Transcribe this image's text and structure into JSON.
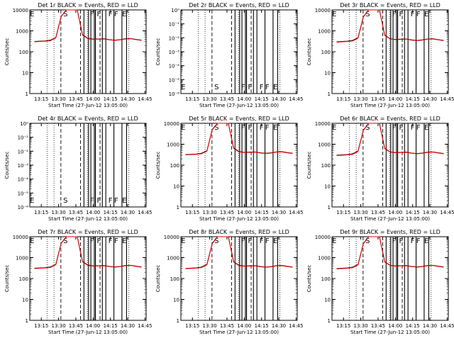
{
  "figure": {
    "colors": {
      "events": "#000000",
      "lld": "#e00000",
      "background": "#ffffff"
    },
    "time_ticks": [
      "13:15",
      "13:30",
      "13:45",
      "14:00",
      "14:15",
      "14:30",
      "14:45"
    ]
  },
  "chart_data": [
    {
      "type": "line",
      "panel": 1,
      "title": "Det 1r BLACK = Events, RED = LLD",
      "xlabel": "Start Time (27-Jun-12 13:05:00)",
      "ylabel": "Counts/sec",
      "ylog": true,
      "yticks": [
        "1",
        "10",
        "100",
        "1000",
        "10000"
      ],
      "markers": [
        "E",
        "S",
        "F",
        "F",
        "F",
        "F",
        "E"
      ],
      "series": [
        {
          "name": "Events",
          "values": [
            310,
            320,
            330,
            360,
            480,
            5000,
            12000,
            12000,
            11500,
            650,
            440,
            400,
            410,
            420,
            380,
            360,
            380,
            420,
            430,
            390,
            360
          ]
        },
        {
          "name": "LLD",
          "values": [
            300,
            310,
            320,
            340,
            460,
            4800,
            11000,
            11000,
            10500,
            620,
            420,
            390,
            400,
            410,
            370,
            350,
            370,
            410,
            420,
            380,
            350
          ]
        }
      ]
    },
    {
      "type": "line",
      "panel": 2,
      "title": "Det 2r BLACK = Events, RED = LLD",
      "xlabel": "Start Time (27-Jun-12 13:05:00)",
      "ylabel": "Counts/sec",
      "ylog": true,
      "yticks": [
        "10⁻⁶",
        "10⁻⁵",
        "10⁻⁴",
        "10⁻³",
        "10⁻²",
        "10⁻¹",
        "10⁰"
      ],
      "markers": [
        "E",
        "S",
        "F",
        "F",
        "F",
        "F",
        "E"
      ],
      "series": []
    },
    {
      "type": "line",
      "panel": 3,
      "title": "Det 3r BLACK = Events, RED = LLD",
      "xlabel": "Start Time (27-Jun-12 13:05:00)",
      "ylabel": "Counts/sec",
      "ylog": true,
      "yticks": [
        "1",
        "10",
        "100",
        "1000",
        "10000"
      ],
      "markers": [
        "E",
        "S",
        "F",
        "F",
        "F",
        "F",
        "E"
      ],
      "series": [
        {
          "name": "Events",
          "values": [
            300,
            310,
            320,
            350,
            470,
            4800,
            11500,
            11500,
            11000,
            620,
            420,
            390,
            400,
            410,
            370,
            350,
            370,
            410,
            420,
            380,
            350
          ]
        },
        {
          "name": "LLD",
          "values": [
            290,
            300,
            310,
            330,
            450,
            4600,
            10500,
            10500,
            10000,
            600,
            410,
            380,
            390,
            400,
            360,
            340,
            360,
            400,
            410,
            370,
            340
          ]
        }
      ]
    },
    {
      "type": "line",
      "panel": 4,
      "title": "Det 4r BLACK = Events, RED = LLD",
      "xlabel": "Start Time (27-Jun-12 13:05:00)",
      "ylabel": "Counts/sec",
      "ylog": true,
      "yticks": [
        "10⁻⁶",
        "10⁻⁵",
        "10⁻⁴",
        "10⁻³",
        "10⁻²",
        "10⁻¹",
        "10⁰"
      ],
      "markers": [
        "E",
        "S",
        "F",
        "F",
        "F",
        "F",
        "E"
      ],
      "series": []
    },
    {
      "type": "line",
      "panel": 5,
      "title": "Det 5r BLACK = Events, RED = LLD",
      "xlabel": "Start Time (27-Jun-12 13:05:00)",
      "ylabel": "Counts/sec",
      "ylog": true,
      "yticks": [
        "1",
        "10",
        "100",
        "1000",
        "10000"
      ],
      "markers": [
        "E",
        "S",
        "F",
        "F",
        "F",
        "F",
        "E"
      ],
      "series": [
        {
          "name": "Events",
          "values": [
            320,
            330,
            340,
            370,
            490,
            5100,
            12500,
            12500,
            12000,
            660,
            450,
            410,
            420,
            430,
            390,
            370,
            390,
            430,
            440,
            400,
            370
          ]
        },
        {
          "name": "LLD",
          "values": [
            310,
            320,
            330,
            350,
            470,
            4900,
            11500,
            11500,
            11000,
            630,
            430,
            400,
            410,
            420,
            380,
            360,
            380,
            420,
            430,
            390,
            360
          ]
        }
      ]
    },
    {
      "type": "line",
      "panel": 6,
      "title": "Det 6r BLACK = Events, RED = LLD",
      "xlabel": "Start Time (27-Jun-12 13:05:00)",
      "ylabel": "Counts/sec",
      "ylog": true,
      "yticks": [
        "1",
        "10",
        "100",
        "1000",
        "10000"
      ],
      "markers": [
        "E",
        "S",
        "F",
        "F",
        "F",
        "F",
        "E"
      ],
      "series": [
        {
          "name": "Events",
          "values": [
            300,
            310,
            320,
            350,
            470,
            4800,
            11500,
            11500,
            11000,
            630,
            430,
            400,
            410,
            420,
            380,
            360,
            380,
            420,
            430,
            390,
            360
          ]
        },
        {
          "name": "LLD",
          "values": [
            290,
            300,
            310,
            330,
            450,
            4600,
            10500,
            10500,
            10000,
            610,
            420,
            390,
            400,
            410,
            370,
            350,
            370,
            410,
            420,
            380,
            350
          ]
        }
      ]
    },
    {
      "type": "line",
      "panel": 7,
      "title": "Det 7r BLACK = Events, RED = LLD",
      "xlabel": "Start Time (27-Jun-12 13:05:00)",
      "ylabel": "Counts/sec",
      "ylog": true,
      "yticks": [
        "1",
        "10",
        "100",
        "1000",
        "10000"
      ],
      "markers": [
        "E",
        "S",
        "F",
        "F",
        "F",
        "F",
        "E"
      ],
      "series": [
        {
          "name": "Events",
          "values": [
            310,
            320,
            330,
            360,
            480,
            5000,
            12000,
            12000,
            11500,
            650,
            440,
            400,
            410,
            420,
            380,
            360,
            380,
            420,
            430,
            390,
            360
          ]
        },
        {
          "name": "LLD",
          "values": [
            300,
            310,
            320,
            340,
            460,
            4800,
            11000,
            11000,
            10500,
            620,
            420,
            390,
            400,
            410,
            370,
            350,
            370,
            410,
            420,
            380,
            350
          ]
        }
      ]
    },
    {
      "type": "line",
      "panel": 8,
      "title": "Det 8r BLACK = Events, RED = LLD",
      "xlabel": "Start Time (27-Jun-12 13:05:00)",
      "ylabel": "Counts/sec",
      "ylog": true,
      "yticks": [
        "1",
        "10",
        "100",
        "1000",
        "10000"
      ],
      "markers": [
        "E",
        "S",
        "F",
        "F",
        "F",
        "F",
        "E"
      ],
      "series": [
        {
          "name": "Events",
          "values": [
            305,
            315,
            325,
            355,
            475,
            4900,
            11800,
            11800,
            11300,
            640,
            435,
            395,
            405,
            415,
            375,
            355,
            375,
            415,
            425,
            385,
            355
          ]
        },
        {
          "name": "LLD",
          "values": [
            295,
            305,
            315,
            335,
            455,
            4700,
            10800,
            10800,
            10300,
            615,
            415,
            385,
            395,
            405,
            365,
            345,
            365,
            405,
            415,
            375,
            345
          ]
        }
      ]
    },
    {
      "type": "line",
      "panel": 9,
      "title": "Det 9r BLACK = Events, RED = LLD",
      "xlabel": "Start Time (27-Jun-12 13:05:00)",
      "ylabel": "Counts/sec",
      "ylog": true,
      "yticks": [
        "1",
        "10",
        "100",
        "1000",
        "10000"
      ],
      "markers": [
        "E",
        "S",
        "F",
        "F",
        "F",
        "F",
        "E"
      ],
      "series": [
        {
          "name": "Events",
          "values": [
            300,
            310,
            320,
            350,
            470,
            4800,
            11500,
            11500,
            11000,
            630,
            430,
            400,
            410,
            420,
            380,
            360,
            380,
            420,
            430,
            390,
            360
          ]
        },
        {
          "name": "LLD",
          "values": [
            290,
            300,
            310,
            330,
            450,
            4600,
            10500,
            10500,
            10000,
            610,
            420,
            390,
            400,
            410,
            370,
            350,
            370,
            410,
            420,
            380,
            350
          ]
        }
      ]
    }
  ]
}
